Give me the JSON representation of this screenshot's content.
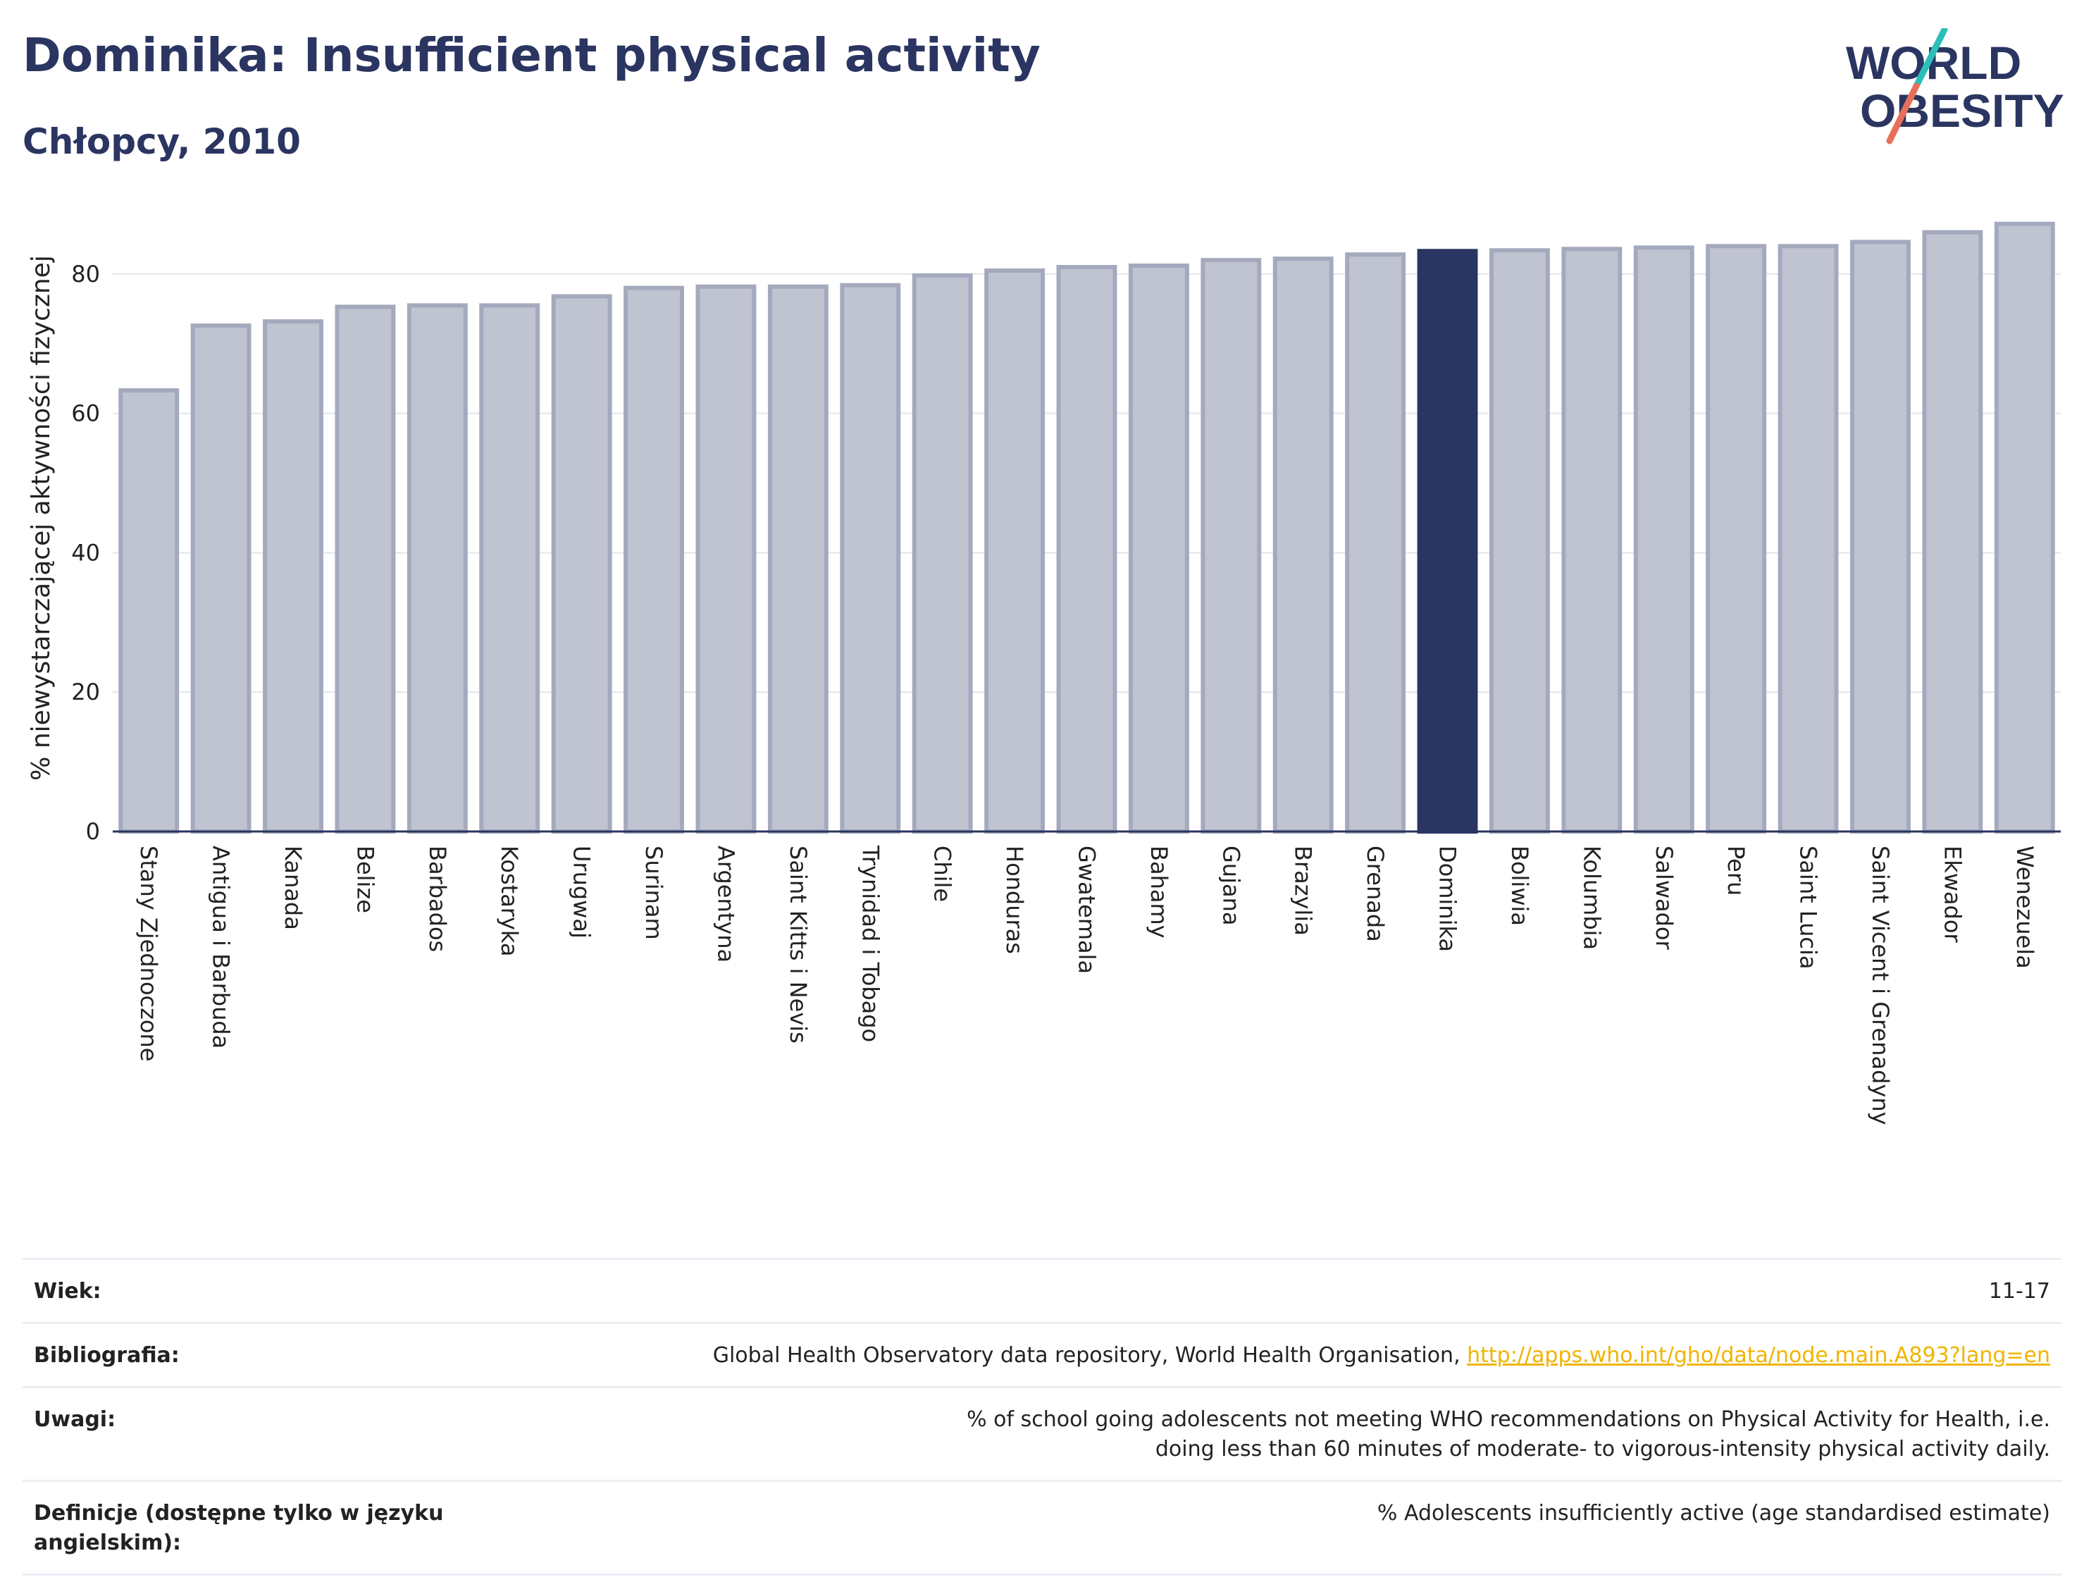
{
  "header": {
    "title": "Dominika: Insufficient physical activity",
    "subtitle": "Chłopcy, 2010"
  },
  "logo": {
    "line1": "WORLD",
    "line2": "OBESITY"
  },
  "colors": {
    "highlight_bar": "#2b3561",
    "other_bar": "#c0c3d0",
    "other_bar_stroke": "#a5a9bd",
    "axis": "#2b3561",
    "grid": "#e3e5ec"
  },
  "chart_data": {
    "type": "bar",
    "title": "Dominika: Insufficient physical activity",
    "subtitle": "Chłopcy, 2010",
    "xlabel": "",
    "ylabel": "% niewystarczającej aktywności fizycznej",
    "ylim": [
      0,
      90
    ],
    "yticks": [
      0,
      20,
      40,
      60,
      80
    ],
    "grid": true,
    "highlight": "Dominika",
    "categories": [
      "Stany Zjednoczone",
      "Antigua i Barbuda",
      "Kanada",
      "Belize",
      "Barbados",
      "Kostaryka",
      "Urugwaj",
      "Surinam",
      "Argentyna",
      "Saint Kitts i Nevis",
      "Trynidad i Tobago",
      "Chile",
      "Honduras",
      "Gwatemala",
      "Bahamy",
      "Gujana",
      "Brazylia",
      "Grenada",
      "Dominika",
      "Boliwia",
      "Kolumbia",
      "Salwador",
      "Peru",
      "Saint Lucia",
      "Saint Vicent i Grenadyny",
      "Ekwador",
      "Wenezuela"
    ],
    "values": [
      63.3,
      72.6,
      73.2,
      75.3,
      75.5,
      75.5,
      76.8,
      78.0,
      78.2,
      78.2,
      78.4,
      79.8,
      80.5,
      81.0,
      81.2,
      82.0,
      82.2,
      82.8,
      83.3,
      83.4,
      83.6,
      83.8,
      84.0,
      84.0,
      84.6,
      86.0,
      87.2
    ]
  },
  "meta": {
    "rows": [
      {
        "label": "Wiek:",
        "value": "11-17"
      },
      {
        "label": "Bibliografia:",
        "value": "Global Health Observatory data repository, World Health Organisation, ",
        "link": "http://apps.who.int/gho/data/node.main.A893?lang=en"
      },
      {
        "label": "Uwagi:",
        "value": "% of school going adolescents not meeting WHO recommendations on Physical Activity for Health, i.e. doing less than 60 minutes of moderate- to vigorous-intensity physical activity daily."
      },
      {
        "label": "Definicje (dostępne tylko w języku angielskim):",
        "value": "% Adolescents insufficiently active (age standardised estimate)"
      }
    ]
  }
}
